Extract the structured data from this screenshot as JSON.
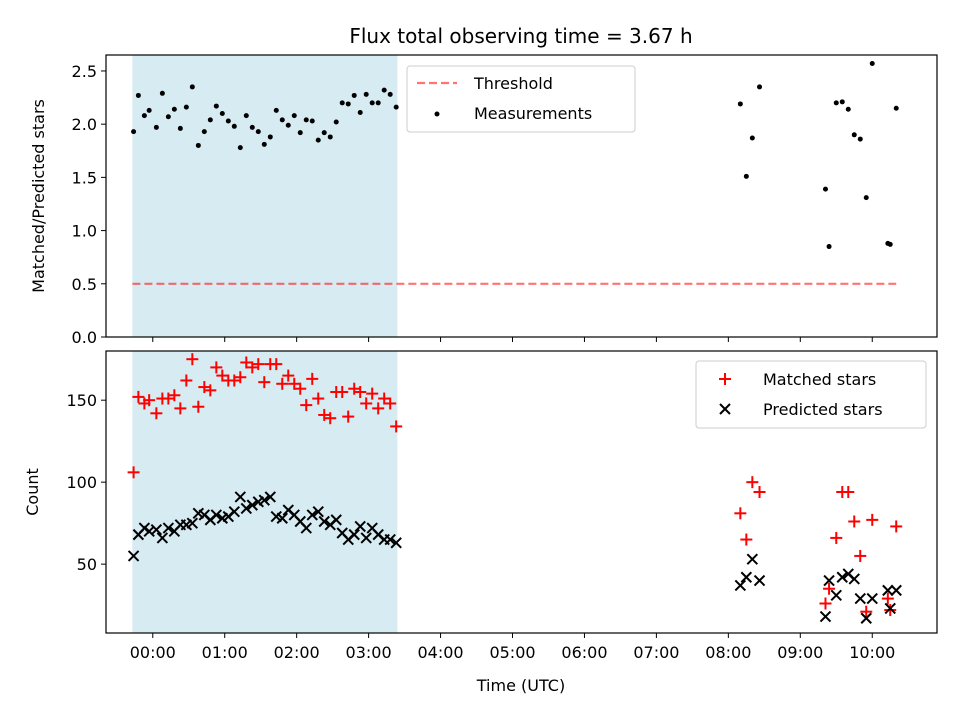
{
  "colors": {
    "shade": "#add8e6",
    "threshold": "#ff0000",
    "measurement": "#000000",
    "matched": "#ff0000",
    "predicted": "#000000"
  },
  "x_tick_labels": [
    "00:00",
    "01:00",
    "02:00",
    "03:00",
    "04:00",
    "05:00",
    "06:00",
    "07:00",
    "08:00",
    "09:00",
    "10:00"
  ],
  "chart_data": [
    {
      "type": "scatter",
      "title": "Flux total observing time = 3.67 h",
      "xlabel": "",
      "ylabel": "Matched/Predicted stars",
      "xlim": [
        "-00:39",
        "10:54"
      ],
      "ylim": [
        0,
        2.65
      ],
      "yticks": [
        "0.0",
        "0.5",
        "1.0",
        "1.5",
        "2.0",
        "2.5"
      ],
      "shaded_interval": [
        "-00:17",
        "03:24"
      ],
      "threshold": {
        "name": "Threshold",
        "y": 0.5,
        "x_range": [
          "-00:17",
          "10:20"
        ]
      },
      "series": [
        {
          "name": "Measurements",
          "points": [
            [
              "-00:16",
              1.93
            ],
            [
              "-00:12",
              2.27
            ],
            [
              "-00:07",
              2.08
            ],
            [
              "-00:03",
              2.13
            ],
            [
              "00:03",
              1.97
            ],
            [
              "00:08",
              2.29
            ],
            [
              "00:13",
              2.07
            ],
            [
              "00:18",
              2.14
            ],
            [
              "00:23",
              1.96
            ],
            [
              "00:28",
              2.16
            ],
            [
              "00:33",
              2.35
            ],
            [
              "00:38",
              1.8
            ],
            [
              "00:43",
              1.93
            ],
            [
              "00:48",
              2.04
            ],
            [
              "00:53",
              2.17
            ],
            [
              "00:58",
              2.1
            ],
            [
              "01:03",
              2.03
            ],
            [
              "01:08",
              1.98
            ],
            [
              "01:13",
              1.78
            ],
            [
              "01:18",
              2.08
            ],
            [
              "01:23",
              1.97
            ],
            [
              "01:28",
              1.93
            ],
            [
              "01:33",
              1.81
            ],
            [
              "01:38",
              1.88
            ],
            [
              "01:43",
              2.13
            ],
            [
              "01:48",
              2.04
            ],
            [
              "01:53",
              1.99
            ],
            [
              "01:58",
              2.08
            ],
            [
              "02:03",
              1.92
            ],
            [
              "02:08",
              2.04
            ],
            [
              "02:13",
              2.03
            ],
            [
              "02:18",
              1.85
            ],
            [
              "02:23",
              1.92
            ],
            [
              "02:28",
              1.88
            ],
            [
              "02:33",
              2.02
            ],
            [
              "02:38",
              2.2
            ],
            [
              "02:43",
              2.19
            ],
            [
              "02:48",
              2.27
            ],
            [
              "02:53",
              2.11
            ],
            [
              "02:58",
              2.28
            ],
            [
              "03:03",
              2.2
            ],
            [
              "03:08",
              2.2
            ],
            [
              "03:13",
              2.32
            ],
            [
              "03:18",
              2.28
            ],
            [
              "03:23",
              2.16
            ],
            [
              "08:10",
              2.19
            ],
            [
              "08:15",
              1.51
            ],
            [
              "08:20",
              1.87
            ],
            [
              "08:26",
              2.35
            ],
            [
              "09:21",
              1.39
            ],
            [
              "09:24",
              0.85
            ],
            [
              "09:30",
              2.2
            ],
            [
              "09:35",
              2.21
            ],
            [
              "09:40",
              2.14
            ],
            [
              "09:45",
              1.9
            ],
            [
              "09:50",
              1.86
            ],
            [
              "09:55",
              1.31
            ],
            [
              "10:00",
              2.57
            ],
            [
              "10:13",
              0.88
            ],
            [
              "10:15",
              0.87
            ],
            [
              "10:20",
              2.15
            ]
          ]
        }
      ]
    },
    {
      "type": "scatter",
      "title": "",
      "xlabel": "Time (UTC)",
      "ylabel": "Count",
      "xlim": [
        "-00:39",
        "10:54"
      ],
      "ylim": [
        8,
        180
      ],
      "yticks": [
        "50",
        "100",
        "150"
      ],
      "shaded_interval": [
        "-00:17",
        "03:24"
      ],
      "series": [
        {
          "name": "Matched stars",
          "marker": "+",
          "points": [
            [
              "-00:16",
              106
            ],
            [
              "-00:12",
              152
            ],
            [
              "-00:07",
              148
            ],
            [
              "-00:03",
              150
            ],
            [
              "00:03",
              142
            ],
            [
              "00:08",
              151
            ],
            [
              "00:13",
              151
            ],
            [
              "00:18",
              153
            ],
            [
              "00:23",
              145
            ],
            [
              "00:28",
              162
            ],
            [
              "00:33",
              175
            ],
            [
              "00:38",
              146
            ],
            [
              "00:43",
              158
            ],
            [
              "00:48",
              156
            ],
            [
              "00:53",
              170
            ],
            [
              "00:58",
              165
            ],
            [
              "01:03",
              162
            ],
            [
              "01:08",
              162
            ],
            [
              "01:13",
              164
            ],
            [
              "01:18",
              173
            ],
            [
              "01:23",
              170
            ],
            [
              "01:28",
              172
            ],
            [
              "01:33",
              161
            ],
            [
              "01:38",
              172
            ],
            [
              "01:43",
              172
            ],
            [
              "01:48",
              160
            ],
            [
              "01:53",
              165
            ],
            [
              "01:58",
              160
            ],
            [
              "02:03",
              157
            ],
            [
              "02:08",
              147
            ],
            [
              "02:13",
              163
            ],
            [
              "02:18",
              151
            ],
            [
              "02:23",
              141
            ],
            [
              "02:28",
              139
            ],
            [
              "02:33",
              155
            ],
            [
              "02:38",
              155
            ],
            [
              "02:43",
              140
            ],
            [
              "02:48",
              157
            ],
            [
              "02:53",
              155
            ],
            [
              "02:58",
              148
            ],
            [
              "03:03",
              154
            ],
            [
              "03:08",
              145
            ],
            [
              "03:13",
              151
            ],
            [
              "03:18",
              148
            ],
            [
              "03:23",
              134
            ],
            [
              "08:10",
              81
            ],
            [
              "08:15",
              65
            ],
            [
              "08:20",
              100
            ],
            [
              "08:26",
              94
            ],
            [
              "09:21",
              26
            ],
            [
              "09:24",
              35
            ],
            [
              "09:30",
              66
            ],
            [
              "09:35",
              94
            ],
            [
              "09:40",
              94
            ],
            [
              "09:45",
              76
            ],
            [
              "09:50",
              55
            ],
            [
              "09:55",
              21
            ],
            [
              "10:00",
              77
            ],
            [
              "10:13",
              29
            ],
            [
              "10:15",
              22
            ],
            [
              "10:20",
              73
            ]
          ]
        },
        {
          "name": "Predicted stars",
          "marker": "x",
          "points": [
            [
              "-00:16",
              55
            ],
            [
              "-00:12",
              68
            ],
            [
              "-00:07",
              72
            ],
            [
              "-00:03",
              70
            ],
            [
              "00:03",
              71
            ],
            [
              "00:08",
              66
            ],
            [
              "00:13",
              72
            ],
            [
              "00:18",
              70
            ],
            [
              "00:23",
              74
            ],
            [
              "00:28",
              74
            ],
            [
              "00:33",
              75
            ],
            [
              "00:38",
              81
            ],
            [
              "00:43",
              80
            ],
            [
              "00:48",
              77
            ],
            [
              "00:53",
              80
            ],
            [
              "00:58",
              78
            ],
            [
              "01:03",
              79
            ],
            [
              "01:08",
              82
            ],
            [
              "01:13",
              91
            ],
            [
              "01:18",
              84
            ],
            [
              "01:23",
              86
            ],
            [
              "01:28",
              88
            ],
            [
              "01:33",
              89
            ],
            [
              "01:38",
              91
            ],
            [
              "01:43",
              79
            ],
            [
              "01:48",
              78
            ],
            [
              "01:53",
              83
            ],
            [
              "01:58",
              80
            ],
            [
              "02:03",
              76
            ],
            [
              "02:08",
              72
            ],
            [
              "02:13",
              80
            ],
            [
              "02:18",
              82
            ],
            [
              "02:23",
              76
            ],
            [
              "02:28",
              74
            ],
            [
              "02:33",
              77
            ],
            [
              "02:38",
              69
            ],
            [
              "02:43",
              65
            ],
            [
              "02:48",
              68
            ],
            [
              "02:53",
              73
            ],
            [
              "02:58",
              66
            ],
            [
              "03:03",
              72
            ],
            [
              "03:08",
              68
            ],
            [
              "03:13",
              65
            ],
            [
              "03:18",
              65
            ],
            [
              "03:23",
              63
            ],
            [
              "08:10",
              37
            ],
            [
              "08:15",
              42
            ],
            [
              "08:20",
              53
            ],
            [
              "08:26",
              40
            ],
            [
              "09:21",
              18
            ],
            [
              "09:24",
              40
            ],
            [
              "09:30",
              31
            ],
            [
              "09:35",
              42
            ],
            [
              "09:40",
              44
            ],
            [
              "09:45",
              41
            ],
            [
              "09:50",
              29
            ],
            [
              "09:55",
              17
            ],
            [
              "10:00",
              29
            ],
            [
              "10:13",
              34
            ],
            [
              "10:15",
              23
            ],
            [
              "10:20",
              34
            ]
          ]
        }
      ]
    }
  ]
}
